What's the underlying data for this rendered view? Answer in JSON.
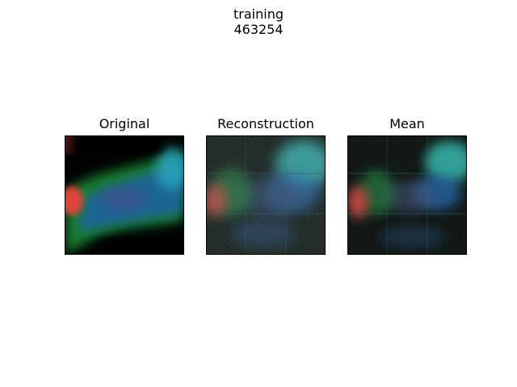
{
  "figure": {
    "suptitle_line1": "training",
    "suptitle_line2": "463254"
  },
  "panels": [
    {
      "title": "Original",
      "image": "cell-microscopy-original"
    },
    {
      "title": "Reconstruction",
      "image": "cell-microscopy-reconstruction"
    },
    {
      "title": "Mean",
      "image": "cell-microscopy-mean"
    }
  ],
  "colors": {
    "cytoplasm_green": "#1f9a3a",
    "nucleus_blue": "#1e6fb8",
    "cyan_region": "#2fb6b0",
    "red_spot": "#e0443a",
    "background": "#020604"
  }
}
